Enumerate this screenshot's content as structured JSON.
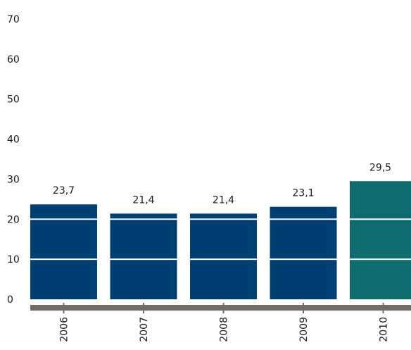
{
  "chart_data": {
    "type": "bar",
    "title": "",
    "xlabel": "",
    "ylabel": "",
    "categories": [
      "2006",
      "2007",
      "2008",
      "2009",
      "2010"
    ],
    "values": [
      23.7,
      21.4,
      21.4,
      23.1,
      29.5
    ],
    "value_labels": [
      "23,7",
      "21,4",
      "21,4",
      "23,1",
      "29,5"
    ],
    "y_ticks": [
      0,
      10,
      20,
      30,
      40,
      50,
      60,
      70
    ],
    "ylim": [
      0,
      70
    ],
    "grid": false,
    "legend": "none",
    "colors": {
      "bar": "#003f72",
      "highlight_bar": "#0f6b6d",
      "axis": "#736c66",
      "bar_gridline": "#ffffff"
    },
    "highlight_index": 4
  }
}
